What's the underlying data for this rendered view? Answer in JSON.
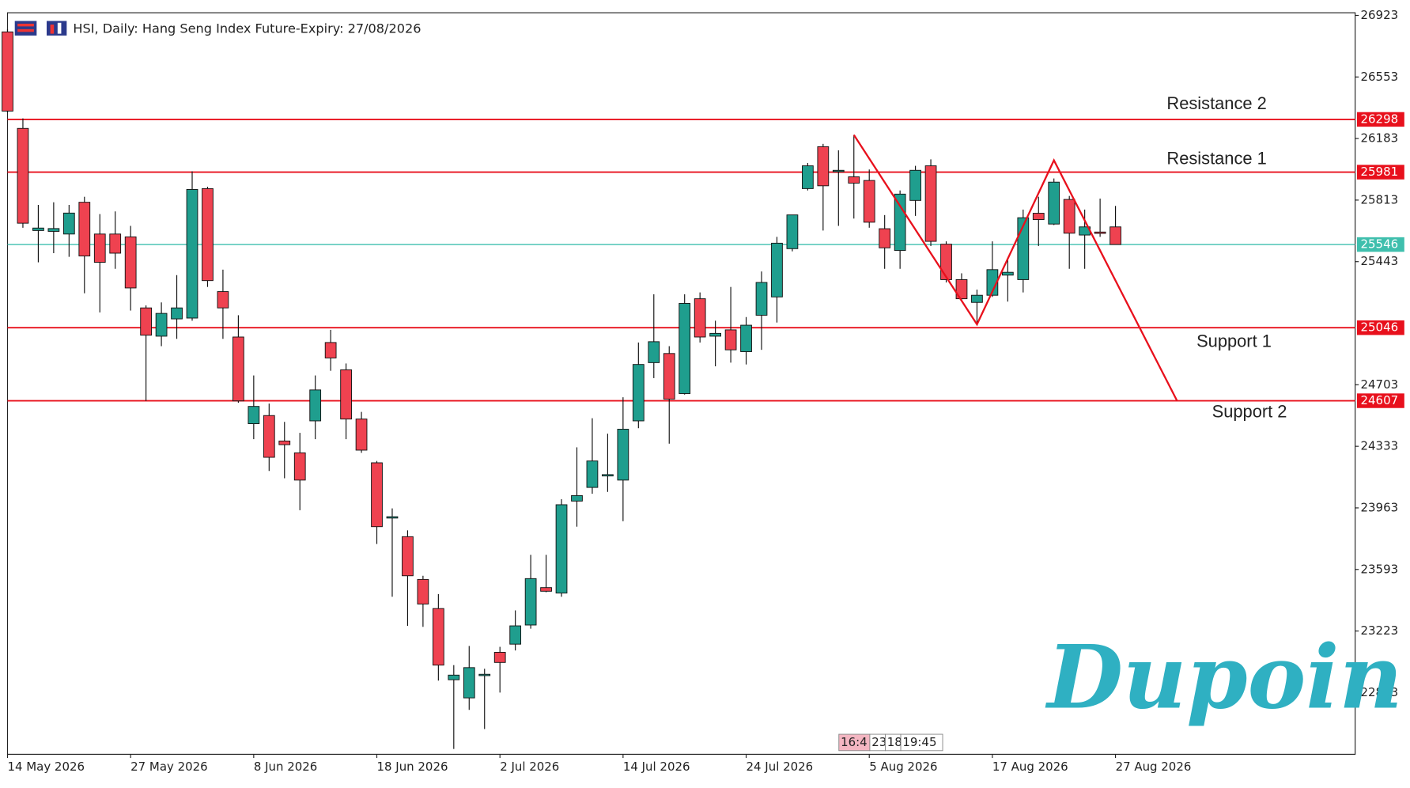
{
  "chart_data": {
    "type": "candlestick",
    "title": "HSI, Daily:  Hang Seng Index Future-Expiry: 27/08/2026",
    "x": [
      "14 May 2026",
      null,
      null,
      null,
      null,
      null,
      null,
      null,
      "27 May 2026",
      null,
      null,
      null,
      null,
      null,
      null,
      null,
      "8 Jun 2026",
      null,
      null,
      null,
      null,
      null,
      null,
      null,
      "18 Jun 2026",
      null,
      null,
      null,
      null,
      null,
      null,
      null,
      "2 Jul 2026",
      null,
      null,
      null,
      null,
      null,
      null,
      null,
      "14 Jul 2026",
      null,
      null,
      null,
      null,
      null,
      null,
      null,
      "24 Jul 2026",
      null,
      null,
      null,
      null,
      null,
      null,
      null,
      "5 Aug 2026",
      null,
      null,
      null,
      null,
      null,
      null,
      null,
      "17 Aug 2026",
      null,
      null,
      null,
      null,
      null,
      null,
      null,
      "27 Aug 2026"
    ],
    "open": [
      26824,
      26244,
      25630,
      25625,
      25609,
      25800,
      25609,
      25609,
      25592,
      25165,
      24995,
      25099,
      25104,
      25882,
      25263,
      24990,
      24469,
      24518,
      24365,
      24294,
      24486,
      24957,
      24793,
      24497,
      24234,
      23905,
      23790,
      23533,
      23358,
      22930,
      22821,
      22958,
      23095,
      23144,
      23259,
      23484,
      23451,
      24004,
      24086,
      24157,
      24130,
      24486,
      24836,
      24891,
      24650,
      25220,
      24995,
      25033,
      24902,
      25121,
      25231,
      25521,
      25882,
      26134,
      25986,
      25953,
      25931,
      25641,
      25510,
      25811,
      26019,
      25548,
      25335,
      25198,
      25241,
      25362,
      25335,
      25734,
      25669,
      25817,
      25603,
      25621,
      25652
    ],
    "high": [
      26840,
      26304,
      25784,
      25800,
      25784,
      25833,
      25729,
      25745,
      25658,
      25180,
      25198,
      25362,
      25986,
      25893,
      25395,
      25121,
      24759,
      24590,
      24480,
      24414,
      24759,
      25033,
      24831,
      24540,
      24245,
      23960,
      23828,
      23555,
      23445,
      23018,
      23133,
      22996,
      23128,
      23347,
      23681,
      23681,
      24015,
      24327,
      24502,
      24409,
      24628,
      24957,
      25247,
      24935,
      25247,
      25258,
      25088,
      25291,
      25110,
      25384,
      25592,
      25724,
      26036,
      26151,
      26112,
      26205,
      25997,
      25723,
      25871,
      26019,
      26058,
      25565,
      25373,
      25275,
      25565,
      25466,
      25756,
      25833,
      25943,
      25838,
      25756,
      25822,
      25778
    ],
    "low": [
      26340,
      25647,
      25439,
      25494,
      25472,
      25253,
      25138,
      25400,
      25149,
      24606,
      24935,
      24979,
      25088,
      25291,
      24979,
      24595,
      24376,
      24185,
      24141,
      23949,
      24376,
      24787,
      24376,
      24294,
      23746,
      23429,
      23254,
      23248,
      22925,
      22514,
      22749,
      22634,
      22853,
      23106,
      23237,
      23456,
      23429,
      23850,
      24048,
      24059,
      23883,
      24442,
      24743,
      24349,
      24644,
      24957,
      24814,
      24836,
      24825,
      24913,
      25077,
      25505,
      25871,
      25630,
      25658,
      25702,
      25647,
      25400,
      25400,
      25718,
      25537,
      25318,
      25209,
      25066,
      25231,
      25203,
      25258,
      25537,
      25663,
      25400,
      25400,
      25592,
      25546
    ],
    "close": [
      26348,
      25674,
      25645,
      25642,
      25735,
      25477,
      25439,
      25494,
      25285,
      25001,
      25132,
      25165,
      25877,
      25329,
      25165,
      24606,
      24573,
      24267,
      24343,
      24130,
      24672,
      24864,
      24497,
      24310,
      23850,
      23910,
      23555,
      23385,
      23018,
      22958,
      23003,
      22963,
      23034,
      23254,
      23538,
      23462,
      23982,
      24037,
      24245,
      24163,
      24436,
      24825,
      24962,
      24617,
      25192,
      24990,
      25012,
      24913,
      25061,
      25318,
      25554,
      25724,
      26019,
      25899,
      25992,
      25915,
      25680,
      25526,
      25849,
      25992,
      25565,
      25335,
      25220,
      25241,
      25395,
      25379,
      25707,
      25696,
      25921,
      25614,
      25652,
      25619,
      25546
    ],
    "up_color": "#1f9e8e",
    "down_color": "#ef4250",
    "ylim": [
      22482,
      26939
    ],
    "yticks": [
      26923,
      26553,
      26183,
      25813,
      25443,
      24703,
      24333,
      23963,
      23593,
      23223,
      22853
    ],
    "levels": [
      {
        "label": "Resistance 2",
        "value": 26298,
        "color": "#e8101c"
      },
      {
        "label": "Resistance 1",
        "value": 25981,
        "color": "#e8101c"
      },
      {
        "label": "Support 1",
        "value": 25046,
        "color": "#e8101c"
      },
      {
        "label": "Support 2",
        "value": 24607,
        "color": "#e8101c"
      }
    ],
    "last_price": {
      "value": 25546,
      "color": "#3fbfad"
    },
    "pattern": {
      "color": "#e8101c",
      "points": [
        {
          "index": 55,
          "value": 26205
        },
        {
          "index": 63,
          "value": 25066
        },
        {
          "index": 68,
          "value": 26052
        },
        {
          "index": 76,
          "value": 24607
        }
      ]
    },
    "time_markers": [
      "16:4",
      "23",
      "18",
      "19:45"
    ],
    "brand": "Dupoin"
  }
}
